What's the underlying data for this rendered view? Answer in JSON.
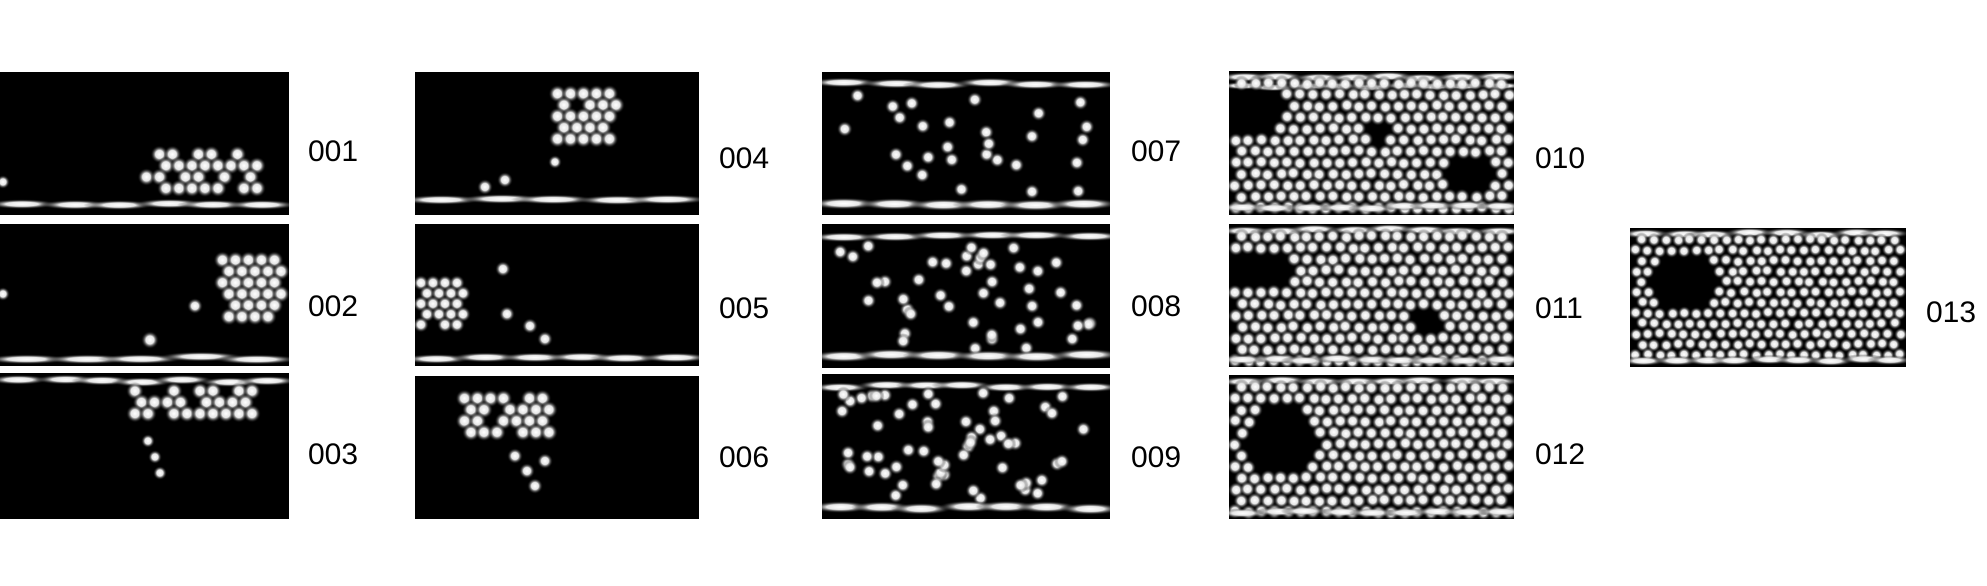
{
  "panels": [
    {
      "id": "001",
      "label": "001"
    },
    {
      "id": "002",
      "label": "002"
    },
    {
      "id": "003",
      "label": "003"
    },
    {
      "id": "004",
      "label": "004"
    },
    {
      "id": "005",
      "label": "005"
    },
    {
      "id": "006",
      "label": "006"
    },
    {
      "id": "007",
      "label": "007"
    },
    {
      "id": "008",
      "label": "008"
    },
    {
      "id": "009",
      "label": "009"
    },
    {
      "id": "010",
      "label": "010"
    },
    {
      "id": "011",
      "label": "011"
    },
    {
      "id": "012",
      "label": "012"
    },
    {
      "id": "013",
      "label": "013"
    }
  ]
}
